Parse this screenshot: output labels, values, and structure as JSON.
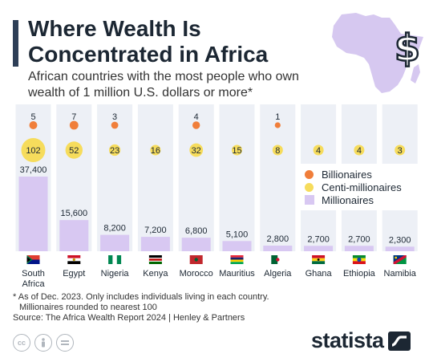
{
  "header": {
    "title_line1": "Where Wealth Is",
    "title_line2": "Concentrated in Africa",
    "subtitle_line1": "African countries with the most people who own",
    "subtitle_line2": "wealth of 1 million U.S. dollars or more*"
  },
  "legend": {
    "billionaires": "Billionaires",
    "centi": "Centi-millionaires",
    "millionaires": "Millionaires"
  },
  "colors": {
    "billionaires": "#f07e3a",
    "centi": "#f6dc5c",
    "millionaires": "#d8c8f2",
    "column": "#edf0f6",
    "dark": "#1c2733",
    "map": "#d6c8f0"
  },
  "chart_data": {
    "type": "bar",
    "categories": [
      "South Africa",
      "Egypt",
      "Nigeria",
      "Kenya",
      "Morocco",
      "Mauritius",
      "Algeria",
      "Ghana",
      "Ethiopia",
      "Namibia"
    ],
    "series": [
      {
        "name": "Billionaires",
        "values": [
          5,
          7,
          3,
          null,
          4,
          null,
          1,
          null,
          null,
          null
        ]
      },
      {
        "name": "Centi-millionaires",
        "values": [
          102,
          52,
          23,
          16,
          32,
          15,
          8,
          4,
          4,
          3
        ]
      },
      {
        "name": "Millionaires",
        "values": [
          37400,
          15600,
          8200,
          7200,
          6800,
          5100,
          2800,
          2700,
          2700,
          2300
        ]
      }
    ],
    "value_labels": [
      "37,400",
      "15,600",
      "8,200",
      "7,200",
      "6,800",
      "5,100",
      "2,800",
      "2,700",
      "2,700",
      "2,300"
    ],
    "flag_icons": [
      "south-africa-flag-icon",
      "egypt-flag-icon",
      "nigeria-flag-icon",
      "kenya-flag-icon",
      "morocco-flag-icon",
      "mauritius-flag-icon",
      "algeria-flag-icon",
      "ghana-flag-icon",
      "ethiopia-flag-icon",
      "namibia-flag-icon"
    ],
    "legend_position": "right",
    "grid": false
  },
  "footer": {
    "note_line1": "* As of Dec. 2023. Only includes individuals living in each country.",
    "note_line2": "Millionaires rounded to nearest 100",
    "source": "Source: The Africa Wealth Report 2024 | Henley & Partners",
    "brand": "statista",
    "icons": [
      "cc-icon",
      "attribution-icon",
      "no-derivatives-icon"
    ]
  }
}
